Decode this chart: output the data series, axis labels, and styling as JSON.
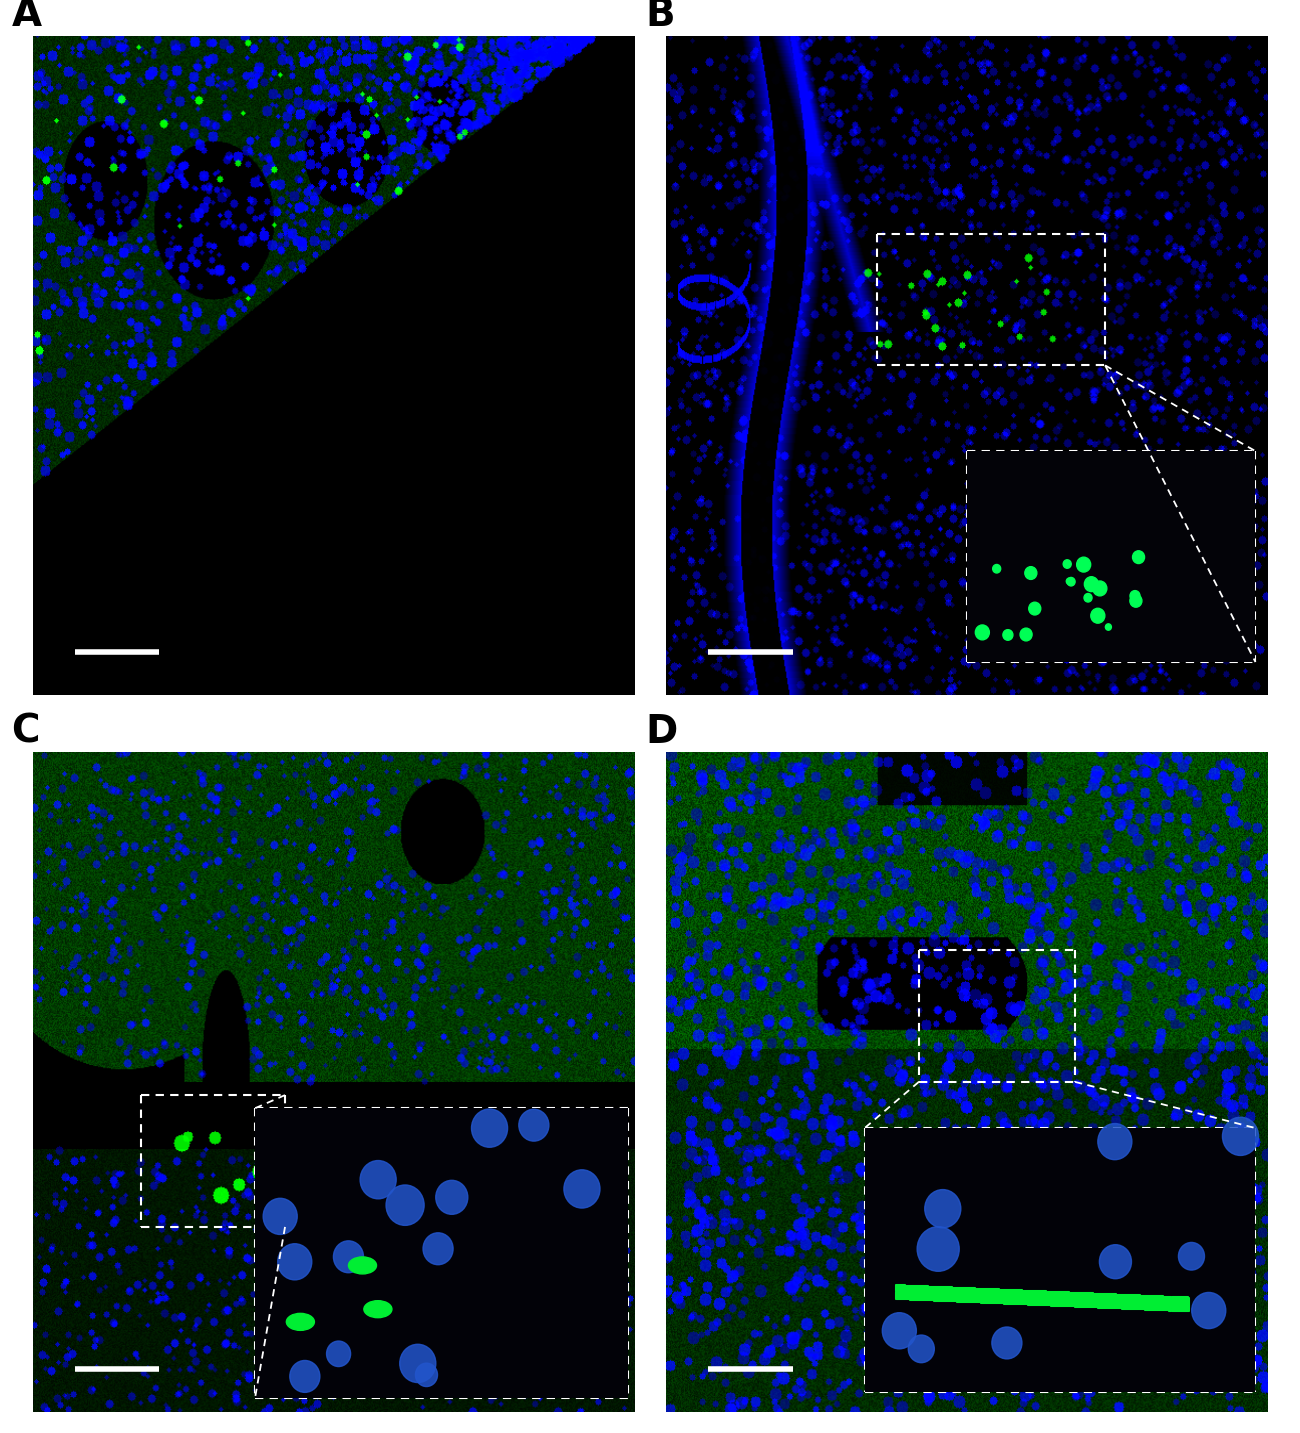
{
  "fig_width": 13.0,
  "fig_height": 14.33,
  "dpi": 100,
  "panels": [
    "A",
    "B",
    "C",
    "D"
  ],
  "background_color": "#ffffff",
  "label_fontsize": 28,
  "label_fontweight": "bold",
  "label_color": "#000000"
}
